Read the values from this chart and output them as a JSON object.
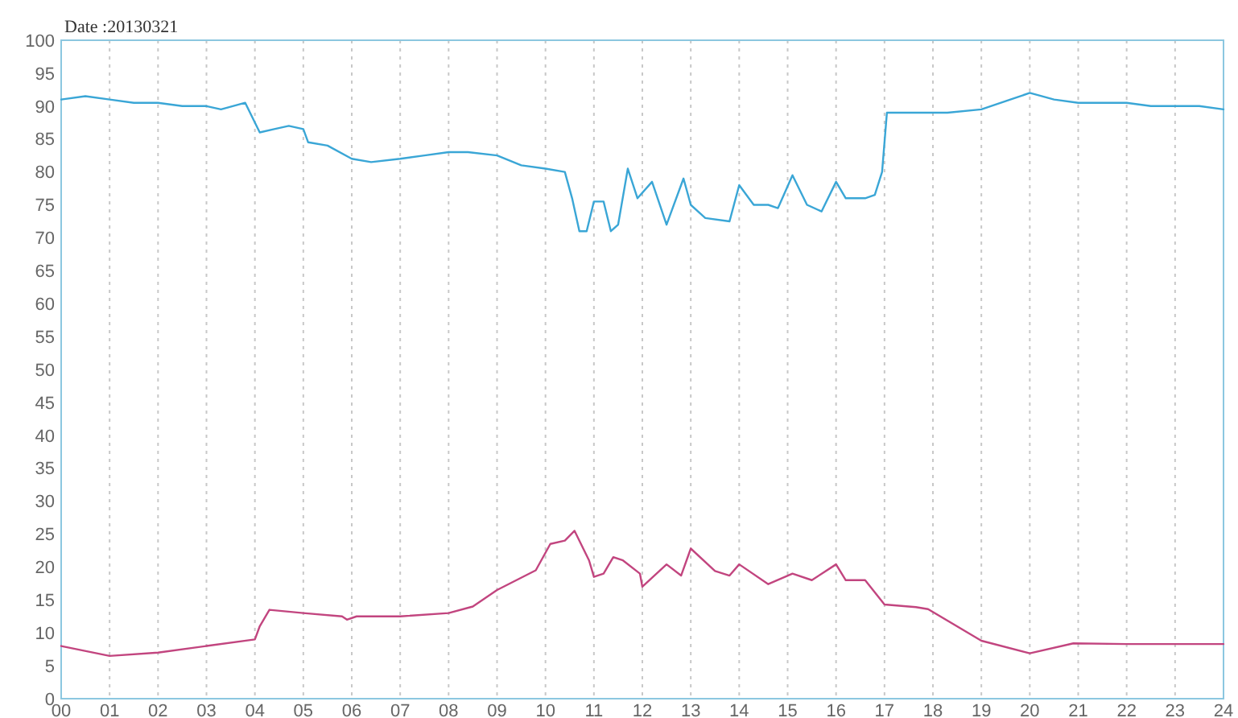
{
  "chart_data": {
    "type": "line",
    "annotations": [
      "Date :20130321"
    ],
    "xlim": [
      0,
      24
    ],
    "ylim": [
      0,
      100
    ],
    "xticks": [
      {
        "value": 0,
        "label": "00"
      },
      {
        "value": 1,
        "label": "01"
      },
      {
        "value": 2,
        "label": "02"
      },
      {
        "value": 3,
        "label": "03"
      },
      {
        "value": 4,
        "label": "04"
      },
      {
        "value": 5,
        "label": "05"
      },
      {
        "value": 6,
        "label": "06"
      },
      {
        "value": 7,
        "label": "07"
      },
      {
        "value": 8,
        "label": "08"
      },
      {
        "value": 9,
        "label": "09"
      },
      10,
      11,
      12,
      13,
      14,
      15,
      16,
      17,
      18,
      19,
      20,
      21,
      22,
      23,
      24
    ],
    "yticks": [
      0,
      5,
      10,
      15,
      20,
      25,
      30,
      35,
      40,
      45,
      50,
      55,
      60,
      65,
      70,
      75,
      80,
      85,
      90,
      95,
      100
    ],
    "grid": "x",
    "marker": "none",
    "line_style": "solid",
    "series": [
      {
        "color": "#3aa6d6",
        "x": [
          0,
          0.5,
          1,
          1.5,
          2,
          2.5,
          3,
          3.3,
          3.8,
          3.9,
          4.1,
          4.4,
          4.7,
          5.0,
          5.1,
          5.5,
          6.0,
          6.4,
          7,
          7.5,
          8,
          8.4,
          9,
          9.5,
          10,
          10.4,
          10.55,
          10.7,
          10.85,
          11.0,
          11.2,
          11.35,
          11.5,
          11.7,
          11.9,
          12.2,
          12.5,
          12.85,
          13.0,
          13.3,
          13.8,
          14.0,
          14.3,
          14.6,
          14.8,
          15.1,
          15.4,
          15.7,
          16.0,
          16.2,
          16.6,
          16.8,
          16.95,
          17.05,
          17.2,
          17.7,
          18.3,
          19.0,
          19.6,
          20.0,
          20.5,
          21,
          21.5,
          22,
          22.5,
          23,
          23.5,
          24
        ],
        "values": [
          91,
          91.5,
          91,
          90.5,
          90.5,
          90,
          90,
          89.5,
          90.5,
          89,
          86,
          86.5,
          87,
          86.5,
          84.5,
          84,
          82,
          81.5,
          82,
          82.5,
          83,
          83,
          82.5,
          81,
          80.5,
          80,
          76,
          71,
          71,
          75.5,
          75.5,
          71,
          72,
          80.5,
          76,
          78.5,
          72,
          79,
          75,
          73,
          72.5,
          78,
          75,
          75,
          74.5,
          79.5,
          75,
          74,
          78.5,
          76,
          76,
          76.5,
          80,
          89,
          89,
          89,
          89,
          89.5,
          91,
          92,
          91,
          90.5,
          90.5,
          90.5,
          90,
          90,
          90,
          89.5
        ]
      },
      {
        "color": "#c2457f",
        "x": [
          0,
          1,
          2,
          3,
          4,
          4.1,
          4.3,
          5,
          5.8,
          5.9,
          6.1,
          7,
          8,
          8.5,
          9,
          9.8,
          10.1,
          10.4,
          10.6,
          10.9,
          11.0,
          11.2,
          11.4,
          11.6,
          11.95,
          12.0,
          12.5,
          12.8,
          13.0,
          13.5,
          13.8,
          14.0,
          14.6,
          15.1,
          15.5,
          16.0,
          16.2,
          16.6,
          17.0,
          17.65,
          17.9,
          19.0,
          20.0,
          20.9,
          22,
          23,
          24
        ],
        "values": [
          8,
          6.5,
          7,
          8,
          9,
          11,
          13.5,
          13,
          12.5,
          12,
          12.5,
          12.5,
          13,
          14,
          16.5,
          19.5,
          23.5,
          24,
          25.5,
          21,
          18.5,
          19,
          21.5,
          21,
          19,
          17,
          20.4,
          18.7,
          22.8,
          19.4,
          18.7,
          20.4,
          17.4,
          19,
          18,
          20.4,
          18,
          18,
          14.3,
          13.9,
          13.6,
          8.8,
          6.9,
          8.4,
          8.3,
          8.3,
          8.3
        ]
      }
    ]
  }
}
